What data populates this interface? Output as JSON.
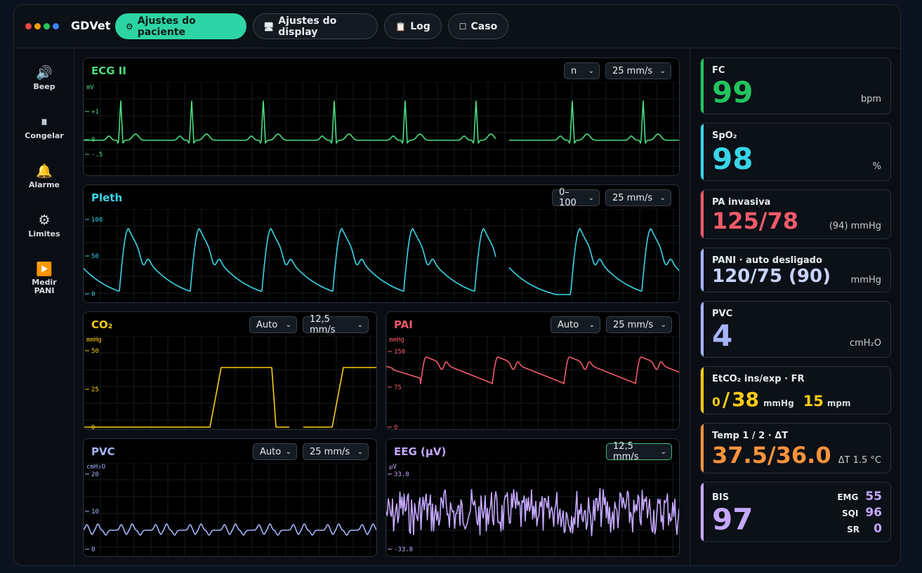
{
  "header": {
    "brand": "GDVet",
    "dot_colors": [
      "#ef4444",
      "#f59e0b",
      "#22c55e",
      "#3b82f6"
    ],
    "tabs": [
      {
        "icon": "⚙",
        "label": "Ajustes do paciente"
      },
      {
        "icon": "🖥",
        "label": "Ajustes do display"
      },
      {
        "icon": "📋",
        "label": "Log"
      },
      {
        "icon": "☐",
        "label": "Caso"
      }
    ]
  },
  "sidebar": {
    "items": [
      {
        "icon": "speaker-icon",
        "label": "Beep"
      },
      {
        "icon": "pause-icon",
        "label": "Congelar"
      },
      {
        "icon": "bell-icon",
        "label": "Alarme"
      },
      {
        "icon": "gear-icon",
        "label": "Limites"
      },
      {
        "icon": "play-icon",
        "label": "Medir PANI"
      }
    ]
  },
  "waves": {
    "ecg": {
      "title": "ECG II",
      "color": "#4ade80",
      "gain": "n",
      "speed": "25 mm/s",
      "unit": "mV",
      "ticks": [
        "+1",
        "0",
        "-.5"
      ]
    },
    "pleth": {
      "title": "Pleth",
      "color": "#38d5e8",
      "range": "0–100",
      "speed": "25 mm/s",
      "ticks": [
        "100",
        "50",
        "0"
      ]
    },
    "co2": {
      "title": "CO₂",
      "color": "#facc15",
      "scale": "Auto",
      "speed": "12,5 mm/s",
      "unit": "mmHg",
      "ticks": [
        "50",
        "25",
        "0"
      ]
    },
    "pai": {
      "title": "PAI",
      "color": "#f05a6a",
      "scale": "Auto",
      "speed": "25 mm/s",
      "unit": "mmHg",
      "ticks": [
        "150",
        "75",
        "0"
      ]
    },
    "pvc": {
      "title": "PVC",
      "color": "#a5b4fc",
      "scale": "Auto",
      "speed": "25 mm/s",
      "unit": "cmH₂O",
      "ticks": [
        "20",
        "10",
        "0"
      ]
    },
    "eeg": {
      "title": "EEG (µV)",
      "color": "#c4a8ff",
      "speed": "12,5 mm/s",
      "unit": "µV",
      "ticks": [
        "33.8",
        "-33.8"
      ]
    }
  },
  "vitals": {
    "fc": {
      "label": "FC",
      "value": "99",
      "unit": "bpm",
      "color": "#22c55e"
    },
    "spo2": {
      "label": "SpO₂",
      "value": "98",
      "unit": "%",
      "color": "#38d5e8"
    },
    "pa": {
      "label": "PA invasiva",
      "value": "125/78",
      "unit": "(94) mmHg",
      "color": "#f05a6a"
    },
    "pani": {
      "label": "PANI · auto desligado",
      "value": "120/75 (90)",
      "unit": "mmHg",
      "color": "#c7d2fe",
      "bar": "#a5b4fc"
    },
    "pvc": {
      "label": "PVC",
      "value": "4",
      "unit": "cmH₂O",
      "color": "#a5b4fc"
    },
    "etco2": {
      "label": "EtCO₂ ins/exp · FR",
      "ins": "0",
      "sep": "/",
      "exp": "38",
      "unit": "mmHg",
      "fr": "15",
      "fr_unit": "mpm",
      "color": "#facc15"
    },
    "temp": {
      "label": "Temp 1 / 2 · ΔT",
      "value": "37.5/36.0",
      "unit": "ΔT 1.5 °C",
      "color": "#fb923c"
    },
    "bis": {
      "label": "BIS",
      "value": "97",
      "emg_label": "EMG",
      "emg": "55",
      "sqi_label": "SQI",
      "sqi": "96",
      "sr_label": "SR",
      "sr": "0",
      "color": "#c4a8ff"
    }
  }
}
